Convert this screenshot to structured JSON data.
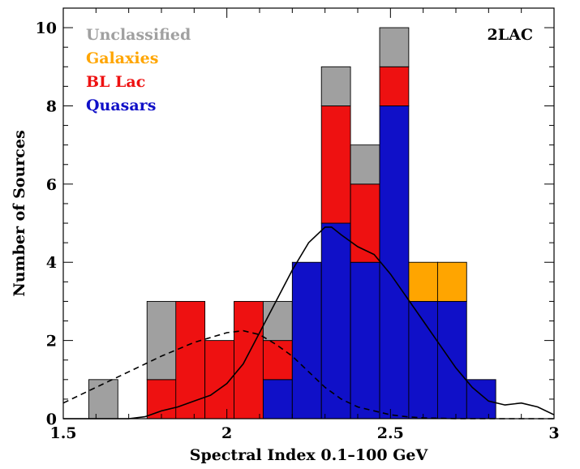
{
  "chart_data": {
    "type": "bar",
    "stacked": true,
    "title": "",
    "annotation": "2LAC",
    "xlabel": "Spectral Index 0.1–100 GeV",
    "ylabel": "Number of Sources",
    "xlim": [
      1.5,
      3.0
    ],
    "ylim": [
      0,
      10.5
    ],
    "xticks": [
      1.5,
      2,
      2.5,
      3
    ],
    "xtick_labels": [
      "1.5",
      "2",
      "2.5",
      "3"
    ],
    "yticks": [
      0,
      2,
      4,
      6,
      8,
      10
    ],
    "ytick_labels": [
      "0",
      "2",
      "4",
      "6",
      "8",
      "10"
    ],
    "grid": false,
    "legend_position": "top-left",
    "bin_width": 0.0889,
    "bin_starts": [
      1.578,
      1.756,
      1.844,
      1.933,
      2.022,
      2.111,
      2.2,
      2.289,
      2.378,
      2.467,
      2.556,
      2.644,
      2.733
    ],
    "series": [
      {
        "name": "Quasars",
        "color": "#1010c8",
        "values": [
          0,
          0,
          0,
          0,
          0,
          1,
          4,
          5,
          4,
          8,
          3,
          3,
          1
        ]
      },
      {
        "name": "BL Lac",
        "color": "#ee1111",
        "values": [
          0,
          1,
          3,
          2,
          3,
          1,
          0,
          3,
          2,
          1,
          0,
          0,
          0
        ]
      },
      {
        "name": "Galaxies",
        "color": "#ffa500",
        "values": [
          0,
          0,
          0,
          0,
          0,
          0,
          0,
          0,
          0,
          0,
          1,
          1,
          0
        ]
      },
      {
        "name": "Unclassified",
        "color": "#a0a0a0",
        "values": [
          1,
          2,
          0,
          0,
          0,
          1,
          0,
          1,
          1,
          1,
          0,
          0,
          0
        ]
      }
    ],
    "solid_curve": {
      "x": [
        1.5,
        1.6,
        1.7,
        1.75,
        1.8,
        1.85,
        1.9,
        1.95,
        2.0,
        2.05,
        2.1,
        2.15,
        2.2,
        2.25,
        2.3,
        2.32,
        2.35,
        2.4,
        2.45,
        2.5,
        2.55,
        2.6,
        2.65,
        2.7,
        2.75,
        2.8,
        2.85,
        2.9,
        2.95,
        3.0
      ],
      "y": [
        0.0,
        0.0,
        0.0,
        0.05,
        0.2,
        0.3,
        0.45,
        0.6,
        0.9,
        1.4,
        2.2,
        3.0,
        3.8,
        4.5,
        4.9,
        4.9,
        4.7,
        4.4,
        4.2,
        3.7,
        3.1,
        2.5,
        1.9,
        1.3,
        0.8,
        0.45,
        0.35,
        0.4,
        0.3,
        0.1
      ]
    },
    "dashed_curve": {
      "x": [
        1.5,
        1.6,
        1.7,
        1.8,
        1.9,
        2.0,
        2.05,
        2.1,
        2.15,
        2.2,
        2.25,
        2.3,
        2.35,
        2.4,
        2.45,
        2.5,
        2.55,
        2.6,
        2.7,
        2.8,
        2.9,
        3.0
      ],
      "y": [
        0.4,
        0.8,
        1.2,
        1.6,
        1.95,
        2.2,
        2.25,
        2.15,
        1.9,
        1.6,
        1.2,
        0.8,
        0.5,
        0.3,
        0.2,
        0.1,
        0.05,
        0.02,
        0.0,
        0.0,
        0.0,
        0.0
      ]
    }
  }
}
